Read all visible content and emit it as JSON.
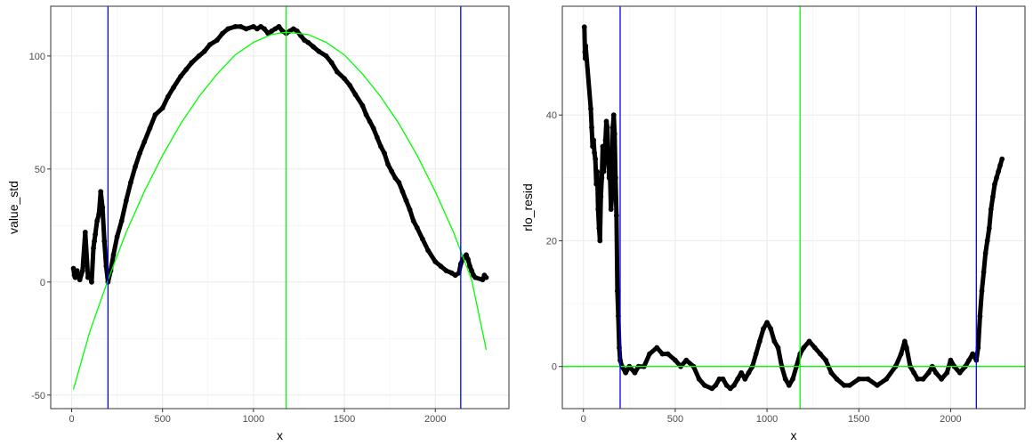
{
  "chart_data": [
    {
      "type": "scatter",
      "xlabel": "x",
      "ylabel": "value_std",
      "xlim": [
        -115,
        2405
      ],
      "ylim": [
        -56,
        122
      ],
      "xticks": [
        0,
        500,
        1000,
        1500,
        2000
      ],
      "yticks": [
        -50,
        0,
        50,
        100
      ],
      "grid": true,
      "vlines": [
        {
          "x": 200,
          "color": "#0000ff"
        },
        {
          "x": 1180,
          "color": "#00ff00"
        },
        {
          "x": 2140,
          "color": "#0000ff"
        }
      ],
      "hlines": [],
      "fit_curve": {
        "color": "#00ff00",
        "x": [
          10,
          100,
          200,
          300,
          400,
          500,
          600,
          700,
          800,
          900,
          1000,
          1100,
          1180,
          1300,
          1400,
          1500,
          1600,
          1700,
          1800,
          1900,
          2000,
          2100,
          2200,
          2280
        ],
        "y": [
          -47.5,
          -22,
          1,
          22,
          40,
          56,
          70,
          82,
          92,
          100.5,
          106,
          109.5,
          110.5,
          109.5,
          106,
          100.5,
          92,
          82,
          70,
          56,
          40,
          22,
          1,
          -30
        ]
      },
      "series": [
        {
          "color": "#000000",
          "x": [
            10,
            15,
            20,
            30,
            45,
            60,
            75,
            90,
            100,
            110,
            120,
            125,
            130,
            140,
            150,
            160,
            170,
            180,
            190,
            200,
            215,
            230,
            250,
            275,
            300,
            325,
            350,
            375,
            400,
            430,
            460,
            500,
            530,
            560,
            600,
            630,
            660,
            700,
            730,
            760,
            800,
            830,
            860,
            900,
            930,
            960,
            1000,
            1020,
            1040,
            1060,
            1080,
            1100,
            1120,
            1140,
            1160,
            1180,
            1200,
            1220,
            1240,
            1260,
            1280,
            1300,
            1330,
            1360,
            1400,
            1430,
            1460,
            1500,
            1530,
            1560,
            1600,
            1620,
            1640,
            1660,
            1680,
            1700,
            1720,
            1740,
            1760,
            1780,
            1800,
            1820,
            1840,
            1860,
            1880,
            1900,
            1930,
            1960,
            2000,
            2030,
            2060,
            2090,
            2110,
            2130,
            2140,
            2150,
            2160,
            2170,
            2180,
            2190,
            2200,
            2210,
            2220,
            2260,
            2270,
            2280
          ],
          "y": [
            6,
            3,
            2,
            5,
            1,
            5,
            22,
            2,
            3,
            0,
            15,
            18,
            21,
            27,
            30,
            40,
            33,
            18,
            7,
            0,
            5,
            12,
            20,
            27,
            36,
            44,
            51,
            57,
            62,
            68,
            74,
            77,
            82,
            86,
            91,
            94,
            97,
            100,
            102,
            105,
            107,
            110,
            112,
            113,
            113,
            112,
            113,
            112,
            113,
            112,
            110,
            111,
            112,
            113,
            111,
            110,
            111,
            112,
            111,
            109,
            107,
            106,
            104,
            102,
            100,
            97,
            93,
            90,
            87,
            83,
            78,
            74,
            71,
            68,
            64,
            60,
            57,
            52,
            49,
            46,
            44,
            40,
            36,
            32,
            27,
            24,
            19,
            14,
            9,
            7,
            5,
            4,
            3,
            4,
            8,
            10,
            11,
            12,
            10,
            7,
            5,
            3,
            2,
            1,
            3,
            2
          ]
        }
      ]
    },
    {
      "type": "scatter",
      "xlabel": "x",
      "ylabel": "rlo_resid",
      "xlim": [
        -115,
        2405
      ],
      "ylim": [
        -6.7,
        57.3
      ],
      "xticks": [
        0,
        500,
        1000,
        1500,
        2000
      ],
      "yticks": [
        0,
        20,
        40
      ],
      "grid": true,
      "vlines": [
        {
          "x": 200,
          "color": "#0000ff"
        },
        {
          "x": 1180,
          "color": "#00ff00"
        },
        {
          "x": 2140,
          "color": "#0000ff"
        }
      ],
      "hlines": [
        {
          "y": 0,
          "color": "#00ff00"
        }
      ],
      "series": [
        {
          "color": "#000000",
          "x": [
            5,
            8,
            10,
            12,
            40,
            45,
            50,
            55,
            60,
            65,
            70,
            75,
            80,
            85,
            90,
            95,
            100,
            105,
            110,
            115,
            120,
            125,
            130,
            135,
            140,
            145,
            150,
            155,
            160,
            165,
            170,
            175,
            180,
            185,
            190,
            195,
            200,
            210,
            230,
            250,
            280,
            300,
            330,
            360,
            400,
            430,
            460,
            500,
            530,
            560,
            600,
            630,
            660,
            700,
            720,
            740,
            760,
            780,
            800,
            820,
            840,
            860,
            880,
            900,
            920,
            940,
            960,
            980,
            1000,
            1020,
            1040,
            1060,
            1080,
            1100,
            1120,
            1140,
            1160,
            1180,
            1200,
            1230,
            1260,
            1290,
            1320,
            1350,
            1380,
            1420,
            1450,
            1500,
            1550,
            1600,
            1650,
            1700,
            1730,
            1750,
            1760,
            1780,
            1800,
            1820,
            1850,
            1880,
            1900,
            1920,
            1950,
            1980,
            2000,
            2020,
            2050,
            2080,
            2100,
            2120,
            2140,
            2150,
            2160,
            2170,
            2180,
            2190,
            2200,
            2210,
            2220,
            2230,
            2240,
            2250,
            2260,
            2270,
            2280
          ],
          "y": [
            54,
            50,
            49,
            51,
            41,
            38,
            35,
            36,
            34,
            33,
            29,
            31,
            25,
            22,
            20,
            27,
            30,
            35,
            31,
            33,
            36,
            39,
            38,
            34,
            30,
            30,
            25,
            27,
            38,
            40,
            37,
            30,
            24,
            12,
            8,
            3,
            1,
            0,
            -1,
            0,
            -1,
            0,
            0,
            2,
            3,
            2,
            2,
            1,
            0,
            1,
            0,
            -2,
            -3,
            -3.5,
            -3,
            -2,
            -2,
            -3,
            -3.5,
            -3,
            -2,
            -1,
            -2,
            -1,
            0,
            2,
            4,
            6,
            7,
            6,
            4,
            3,
            0,
            -2,
            -3,
            -2,
            0,
            2,
            3,
            4,
            3,
            2,
            1,
            -1,
            -2,
            -3,
            -3,
            -2,
            -2,
            -3,
            -2,
            0,
            2,
            4,
            3,
            0,
            -1,
            -2,
            -2,
            -1,
            0,
            -1,
            -2,
            -1,
            1,
            0,
            -1,
            0,
            1,
            2,
            1,
            3,
            8,
            12,
            15,
            18,
            20,
            22,
            25,
            27,
            29,
            30,
            31,
            32,
            33
          ]
        }
      ]
    }
  ]
}
